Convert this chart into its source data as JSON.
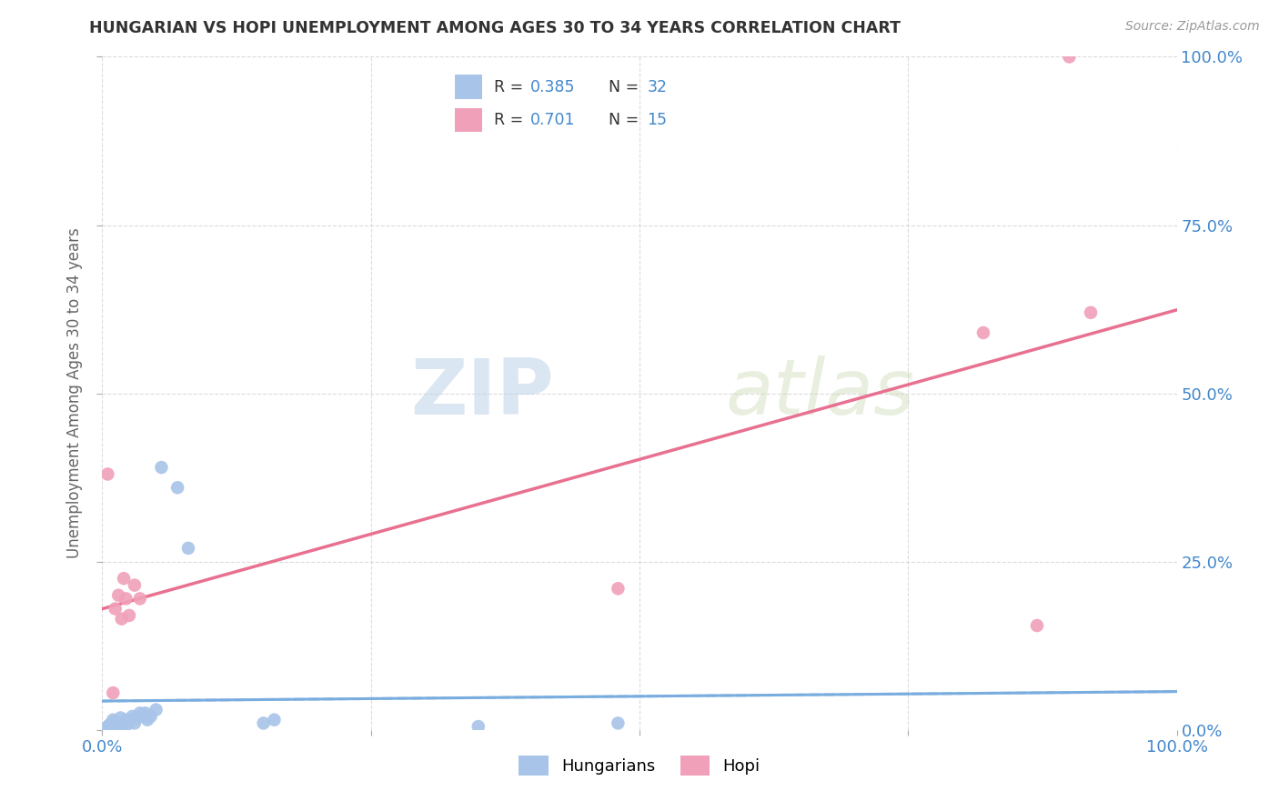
{
  "title": "HUNGARIAN VS HOPI UNEMPLOYMENT AMONG AGES 30 TO 34 YEARS CORRELATION CHART",
  "source": "Source: ZipAtlas.com",
  "ylabel": "Unemployment Among Ages 30 to 34 years",
  "watermark_zip": "ZIP",
  "watermark_atlas": "atlas",
  "R_hungarian": 0.385,
  "N_hungarian": 32,
  "R_hopi": 0.701,
  "N_hopi": 15,
  "xlim": [
    0,
    1
  ],
  "ylim": [
    0,
    1
  ],
  "xticks": [
    0.0,
    0.25,
    0.5,
    0.75,
    1.0
  ],
  "yticks": [
    0.0,
    0.25,
    0.5,
    0.75,
    1.0
  ],
  "hungarian_color": "#a8c4e8",
  "hopi_color": "#f0a0b8",
  "hun_line_color": "#7aaddf",
  "hopi_line_color": "#e87090",
  "hungarian_scatter": [
    [
      0.005,
      0.005
    ],
    [
      0.007,
      0.008
    ],
    [
      0.008,
      0.003
    ],
    [
      0.009,
      0.006
    ],
    [
      0.01,
      0.01
    ],
    [
      0.01,
      0.015
    ],
    [
      0.012,
      0.008
    ],
    [
      0.013,
      0.012
    ],
    [
      0.015,
      0.005
    ],
    [
      0.016,
      0.01
    ],
    [
      0.017,
      0.018
    ],
    [
      0.018,
      0.007
    ],
    [
      0.02,
      0.012
    ],
    [
      0.022,
      0.015
    ],
    [
      0.023,
      0.008
    ],
    [
      0.025,
      0.015
    ],
    [
      0.028,
      0.02
    ],
    [
      0.03,
      0.01
    ],
    [
      0.032,
      0.018
    ],
    [
      0.035,
      0.025
    ],
    [
      0.038,
      0.02
    ],
    [
      0.04,
      0.025
    ],
    [
      0.042,
      0.015
    ],
    [
      0.045,
      0.02
    ],
    [
      0.05,
      0.03
    ],
    [
      0.055,
      0.39
    ],
    [
      0.07,
      0.36
    ],
    [
      0.08,
      0.27
    ],
    [
      0.15,
      0.01
    ],
    [
      0.16,
      0.015
    ],
    [
      0.35,
      0.005
    ],
    [
      0.48,
      0.01
    ]
  ],
  "hopi_scatter": [
    [
      0.005,
      0.38
    ],
    [
      0.01,
      0.055
    ],
    [
      0.012,
      0.18
    ],
    [
      0.015,
      0.2
    ],
    [
      0.018,
      0.165
    ],
    [
      0.02,
      0.225
    ],
    [
      0.022,
      0.195
    ],
    [
      0.025,
      0.17
    ],
    [
      0.03,
      0.215
    ],
    [
      0.035,
      0.195
    ],
    [
      0.48,
      0.21
    ],
    [
      0.82,
      0.59
    ],
    [
      0.87,
      0.155
    ],
    [
      0.9,
      1.0
    ],
    [
      0.92,
      0.62
    ]
  ],
  "background_color": "#ffffff",
  "grid_color": "#cccccc",
  "title_color": "#333333",
  "axis_label_color": "#666666",
  "tick_label_color": "#4488cc"
}
